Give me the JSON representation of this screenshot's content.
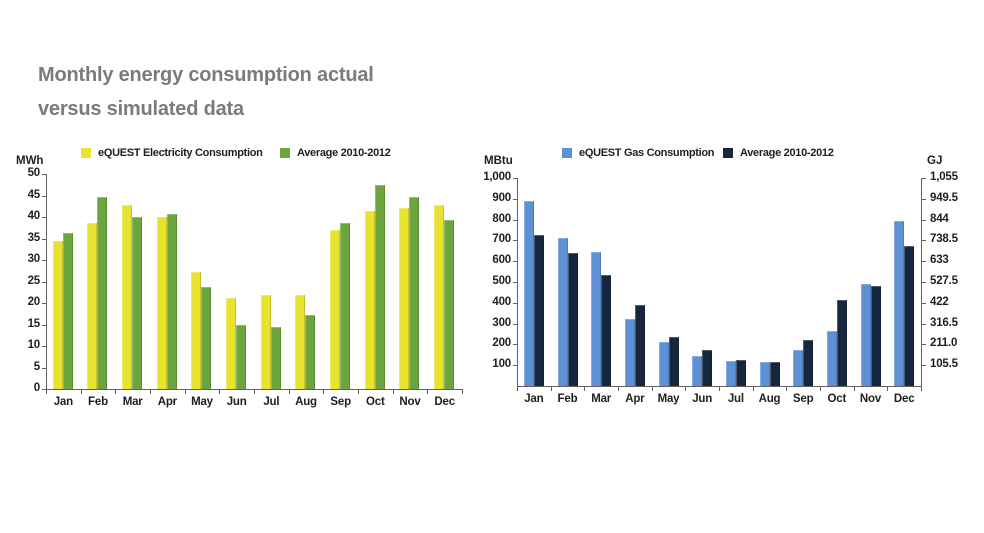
{
  "title": {
    "line1": "Monthly energy consumption actual",
    "line2": "versus simulated data"
  },
  "chart_data": [
    {
      "id": "electricity",
      "type": "bar",
      "unit_left": "MWh",
      "categories": [
        "Jan",
        "Feb",
        "Mar",
        "Apr",
        "May",
        "Jun",
        "Jul",
        "Aug",
        "Sep",
        "Oct",
        "Nov",
        "Dec"
      ],
      "series": [
        {
          "name": "eQUEST Electricity Consumption",
          "color": "#e9e32f",
          "values": [
            34.5,
            38.7,
            42.7,
            40.0,
            27.3,
            21.2,
            21.8,
            21.8,
            37.0,
            41.5,
            42.2,
            42.8
          ]
        },
        {
          "name": "Average 2010-2012",
          "color": "#6ca53d",
          "values": [
            36.3,
            44.7,
            40.0,
            40.6,
            23.8,
            14.9,
            14.4,
            17.3,
            38.6,
            47.5,
            44.6,
            39.3
          ]
        }
      ],
      "ylim": [
        0,
        50
      ],
      "yticks_left": [
        "0",
        "5",
        "10",
        "15",
        "20",
        "25",
        "30",
        "35",
        "40",
        "45",
        "50"
      ],
      "legend_position": "top",
      "grid": false
    },
    {
      "id": "gas",
      "type": "bar",
      "unit_left": "MBtu",
      "unit_right": "GJ",
      "categories": [
        "Jan",
        "Feb",
        "Mar",
        "Apr",
        "May",
        "Jun",
        "Jul",
        "Aug",
        "Sep",
        "Oct",
        "Nov",
        "Dec"
      ],
      "series": [
        {
          "name": "eQUEST Gas Consumption",
          "color": "#5d90d5",
          "values": [
            890,
            710,
            645,
            320,
            212,
            145,
            122,
            117,
            175,
            265,
            490,
            795
          ]
        },
        {
          "name": "Average 2010-2012",
          "color": "#17263f",
          "values": [
            727,
            640,
            533,
            388,
            237,
            174,
            126,
            116,
            221,
            415,
            481,
            672
          ]
        }
      ],
      "ylim": [
        0,
        1000
      ],
      "yticks_left": [
        "100",
        "200",
        "300",
        "400",
        "500",
        "600",
        "700",
        "800",
        "900",
        "1,000"
      ],
      "yticks_right": [
        "105.5",
        "211.0",
        "316.5",
        "422",
        "527.5",
        "633",
        "738.5",
        "844",
        "949.5",
        "1,055"
      ],
      "legend_position": "top",
      "grid": false
    }
  ]
}
